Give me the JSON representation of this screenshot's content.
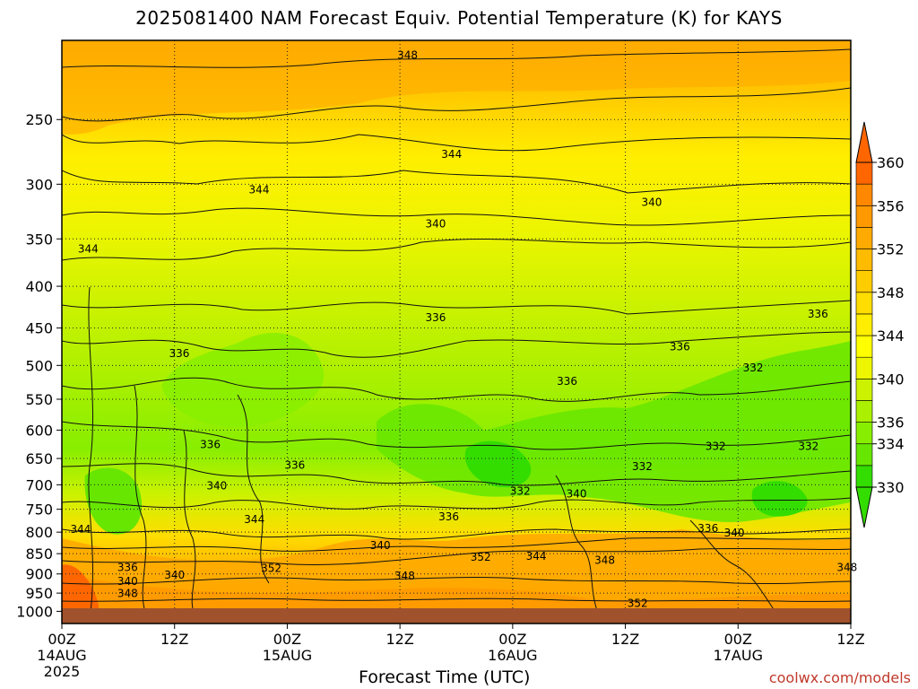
{
  "chart_data": {
    "type": "heatmap",
    "title": "2025081400 NAM Forecast Equiv. Potential Temperature (K) for KAYS",
    "xlabel": "Forecast Time (UTC)",
    "ylabel": "",
    "credit": "coolwx.com/models",
    "x_ticks": [
      {
        "hour": 0,
        "label": "00Z",
        "sub1": "14AUG",
        "sub2": "2025"
      },
      {
        "hour": 12,
        "label": "12Z",
        "sub1": "",
        "sub2": ""
      },
      {
        "hour": 24,
        "label": "00Z",
        "sub1": "15AUG",
        "sub2": ""
      },
      {
        "hour": 36,
        "label": "12Z",
        "sub1": "",
        "sub2": ""
      },
      {
        "hour": 48,
        "label": "00Z",
        "sub1": "16AUG",
        "sub2": ""
      },
      {
        "hour": 60,
        "label": "12Z",
        "sub1": "",
        "sub2": ""
      },
      {
        "hour": 72,
        "label": "00Z",
        "sub1": "17AUG",
        "sub2": ""
      },
      {
        "hour": 84,
        "label": "12Z",
        "sub1": "",
        "sub2": ""
      }
    ],
    "xlim": [
      0,
      84
    ],
    "y_ticks": [
      250,
      300,
      350,
      400,
      450,
      500,
      550,
      600,
      650,
      700,
      750,
      800,
      850,
      900,
      950,
      1000
    ],
    "ylim_hpa": [
      1035,
      200
    ],
    "log_pressure_axis": true,
    "grid": true,
    "colorbar": {
      "levels": [
        330,
        332,
        334,
        336,
        338,
        340,
        342,
        344,
        346,
        348,
        350,
        352,
        354,
        356,
        358,
        360
      ],
      "labels": [
        330,
        334,
        336,
        340,
        344,
        348,
        352,
        356,
        360
      ],
      "colors": [
        "#33dd00",
        "#66e600",
        "#88ee00",
        "#aaf000",
        "#ccf200",
        "#eef500",
        "#ffff00",
        "#ffee00",
        "#ffdd00",
        "#ffcc00",
        "#ffbb00",
        "#ffaa00",
        "#ff9900",
        "#ff8800",
        "#ff6600"
      ]
    },
    "contour_labels": [
      {
        "text": "348",
        "hour": 36.8,
        "hpa": 210
      },
      {
        "text": "344",
        "hour": 41.5,
        "hpa": 278
      },
      {
        "text": "344",
        "hour": 21.0,
        "hpa": 307
      },
      {
        "text": "340",
        "hour": 62.8,
        "hpa": 318
      },
      {
        "text": "340",
        "hour": 39.8,
        "hpa": 338
      },
      {
        "text": "344",
        "hour": 2.8,
        "hpa": 363
      },
      {
        "text": "336",
        "hour": 80.5,
        "hpa": 436
      },
      {
        "text": "336",
        "hour": 39.8,
        "hpa": 440
      },
      {
        "text": "336",
        "hour": 65.8,
        "hpa": 478
      },
      {
        "text": "336",
        "hour": 12.5,
        "hpa": 487
      },
      {
        "text": "332",
        "hour": 73.6,
        "hpa": 507
      },
      {
        "text": "336",
        "hour": 53.8,
        "hpa": 527
      },
      {
        "text": "336",
        "hour": 15.8,
        "hpa": 630
      },
      {
        "text": "332",
        "hour": 69.6,
        "hpa": 633
      },
      {
        "text": "332",
        "hour": 79.5,
        "hpa": 633
      },
      {
        "text": "336",
        "hour": 24.8,
        "hpa": 667
      },
      {
        "text": "332",
        "hour": 61.8,
        "hpa": 670
      },
      {
        "text": "340",
        "hour": 16.5,
        "hpa": 707
      },
      {
        "text": "332",
        "hour": 48.8,
        "hpa": 718
      },
      {
        "text": "340",
        "hour": 54.8,
        "hpa": 724
      },
      {
        "text": "344",
        "hour": 2.0,
        "hpa": 800
      },
      {
        "text": "344",
        "hour": 20.5,
        "hpa": 778
      },
      {
        "text": "336",
        "hour": 41.2,
        "hpa": 772
      },
      {
        "text": "336",
        "hour": 68.8,
        "hpa": 798
      },
      {
        "text": "340",
        "hour": 71.6,
        "hpa": 808
      },
      {
        "text": "340",
        "hour": 33.9,
        "hpa": 837
      },
      {
        "text": "352",
        "hour": 44.6,
        "hpa": 865
      },
      {
        "text": "344",
        "hour": 50.5,
        "hpa": 863
      },
      {
        "text": "348",
        "hour": 57.8,
        "hpa": 873
      },
      {
        "text": "336",
        "hour": 7.0,
        "hpa": 890
      },
      {
        "text": "352",
        "hour": 22.3,
        "hpa": 893
      },
      {
        "text": "340",
        "hour": 12.0,
        "hpa": 910
      },
      {
        "text": "348",
        "hour": 83.6,
        "hpa": 890
      },
      {
        "text": "348",
        "hour": 36.5,
        "hpa": 912
      },
      {
        "text": "340",
        "hour": 7.0,
        "hpa": 926
      },
      {
        "text": "348",
        "hour": 7.0,
        "hpa": 958
      },
      {
        "text": "352",
        "hour": 61.3,
        "hpa": 985
      }
    ]
  }
}
